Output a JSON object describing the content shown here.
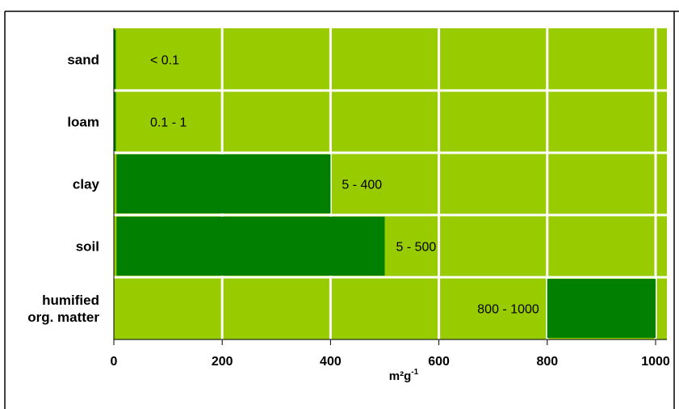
{
  "chart_data": {
    "type": "bar",
    "orientation": "horizontal",
    "range_bars": true,
    "categories": [
      {
        "label": [
          "sand"
        ]
      },
      {
        "label": [
          "loam"
        ]
      },
      {
        "label": [
          "clay"
        ]
      },
      {
        "label": [
          "soil"
        ]
      },
      {
        "label": [
          "humified",
          "org. matter"
        ]
      }
    ],
    "series": [
      {
        "values": [
          {
            "low": 0,
            "high": 0.1,
            "label": "< 0.1"
          },
          {
            "low": 0.1,
            "high": 1,
            "label": "0.1 - 1"
          },
          {
            "low": 5,
            "high": 400,
            "label": "5 - 400"
          },
          {
            "low": 5,
            "high": 500,
            "label": "5 - 500"
          },
          {
            "low": 800,
            "high": 1000,
            "label": "800 - 1000"
          }
        ]
      }
    ],
    "xlabel": "m²g",
    "xlabel_superscript": "-1",
    "title": "",
    "ylabel": "",
    "xlim": [
      0,
      1000
    ],
    "xticks": [
      0,
      200,
      400,
      600,
      800,
      1000
    ],
    "grid": true,
    "legend": "none",
    "colors": {
      "background_band": "#99cc00",
      "bar": "#007f00",
      "grid": "#ffffff",
      "frame": "#000000"
    }
  }
}
